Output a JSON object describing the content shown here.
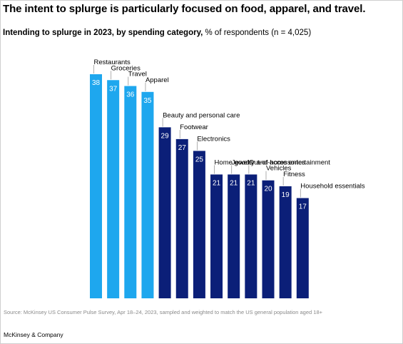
{
  "header": {
    "title": "The intent to splurge is particularly focused on food, apparel, and travel.",
    "subtitle_bold": "Intending to splurge in 2023, by spending category,",
    "subtitle_rest": " % of respondents (n = 4,025)"
  },
  "chart_data": {
    "type": "bar",
    "categories": [
      "Restaurants",
      "Groceries",
      "Travel",
      "Apparel",
      "Beauty and personal care",
      "Footwear",
      "Electronics",
      "Home goods",
      "Jewelry and accessories",
      "Out-of-home entertainment",
      "Vehicles",
      "Fitness",
      "Household essentials"
    ],
    "values": [
      38,
      37,
      36,
      35,
      29,
      27,
      25,
      21,
      21,
      21,
      20,
      19,
      17
    ],
    "highlight_count": 4,
    "colors": {
      "highlight": "#1ea7ee",
      "base": "#0b1f78",
      "label": "#ffffff",
      "leader": "#9a9a9a"
    },
    "xlabel": "",
    "ylabel": "",
    "ylim": [
      0,
      38
    ],
    "grid": false,
    "legend": "none"
  },
  "footer": {
    "source": "Source: McKinsey US Consumer Pulse Survey, Apr 18–24, 2023, sampled and weighted to match the US general population aged 18+",
    "brand": "McKinsey & Company"
  }
}
